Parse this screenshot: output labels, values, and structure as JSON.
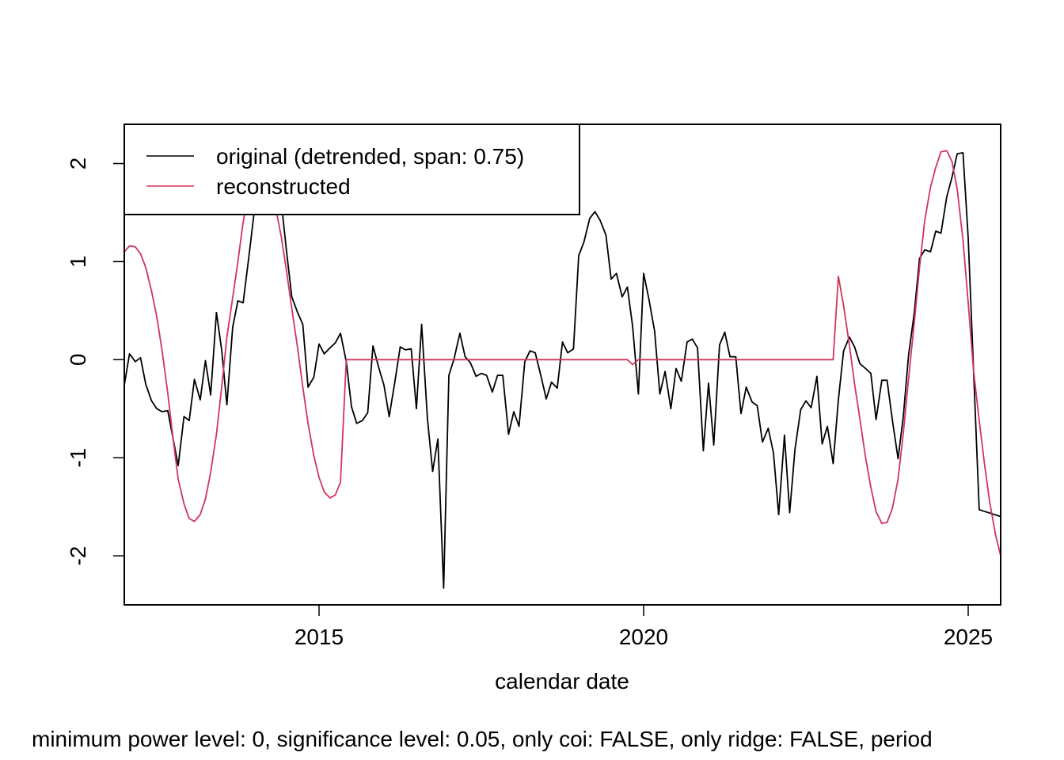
{
  "chart_data": {
    "type": "line",
    "xlabel": "calendar date",
    "ylabel": "",
    "xlim": [
      2012.0,
      2025.5
    ],
    "ylim": [
      -2.5,
      2.4
    ],
    "x_ticks": [
      2015,
      2020,
      2025
    ],
    "y_ticks": [
      -2,
      -1,
      0,
      1,
      2
    ],
    "legend_position": "top-left",
    "footnote": "minimum power level: 0, significance level: 0.05, only coi: FALSE, only ridge: FALSE, period",
    "series": [
      {
        "name": "original (detrended, span: 0.75)",
        "color": "#000000",
        "points": [
          [
            2012.0,
            -0.26
          ],
          [
            2012.08,
            0.06
          ],
          [
            2012.17,
            -0.02
          ],
          [
            2012.25,
            0.02
          ],
          [
            2012.33,
            -0.25
          ],
          [
            2012.42,
            -0.42
          ],
          [
            2012.5,
            -0.5
          ],
          [
            2012.58,
            -0.53
          ],
          [
            2012.67,
            -0.52
          ],
          [
            2012.75,
            -0.8
          ],
          [
            2012.83,
            -1.08
          ],
          [
            2012.92,
            -0.58
          ],
          [
            2013.0,
            -0.62
          ],
          [
            2013.08,
            -0.2
          ],
          [
            2013.17,
            -0.41
          ],
          [
            2013.25,
            -0.01
          ],
          [
            2013.33,
            -0.36
          ],
          [
            2013.42,
            0.48
          ],
          [
            2013.5,
            0.1
          ],
          [
            2013.58,
            -0.46
          ],
          [
            2013.67,
            0.33
          ],
          [
            2013.75,
            0.6
          ],
          [
            2013.83,
            0.58
          ],
          [
            2013.92,
            1.05
          ],
          [
            2014.0,
            1.5
          ],
          [
            2014.08,
            1.8
          ],
          [
            2014.17,
            2.05
          ],
          [
            2014.25,
            2.1
          ],
          [
            2014.33,
            1.95
          ],
          [
            2014.42,
            1.6
          ],
          [
            2014.5,
            1.1
          ],
          [
            2014.58,
            0.64
          ],
          [
            2014.67,
            0.48
          ],
          [
            2014.75,
            0.36
          ],
          [
            2014.83,
            -0.28
          ],
          [
            2014.92,
            -0.18
          ],
          [
            2015.0,
            0.16
          ],
          [
            2015.08,
            0.06
          ],
          [
            2015.17,
            0.12
          ],
          [
            2015.25,
            0.17
          ],
          [
            2015.33,
            0.27
          ],
          [
            2015.42,
            -0.02
          ],
          [
            2015.5,
            -0.48
          ],
          [
            2015.58,
            -0.65
          ],
          [
            2015.67,
            -0.62
          ],
          [
            2015.75,
            -0.54
          ],
          [
            2015.83,
            0.14
          ],
          [
            2015.92,
            -0.08
          ],
          [
            2016.0,
            -0.26
          ],
          [
            2016.08,
            -0.58
          ],
          [
            2016.17,
            -0.22
          ],
          [
            2016.25,
            0.13
          ],
          [
            2016.33,
            0.1
          ],
          [
            2016.42,
            0.11
          ],
          [
            2016.5,
            -0.5
          ],
          [
            2016.58,
            0.36
          ],
          [
            2016.67,
            -0.6
          ],
          [
            2016.75,
            -1.14
          ],
          [
            2016.83,
            -0.81
          ],
          [
            2016.92,
            -2.33
          ],
          [
            2017.0,
            -0.16
          ],
          [
            2017.08,
            0.01
          ],
          [
            2017.17,
            0.27
          ],
          [
            2017.25,
            0.03
          ],
          [
            2017.33,
            -0.03
          ],
          [
            2017.42,
            -0.17
          ],
          [
            2017.5,
            -0.14
          ],
          [
            2017.58,
            -0.16
          ],
          [
            2017.67,
            -0.33
          ],
          [
            2017.75,
            -0.16
          ],
          [
            2017.83,
            -0.16
          ],
          [
            2017.92,
            -0.76
          ],
          [
            2018.0,
            -0.53
          ],
          [
            2018.08,
            -0.68
          ],
          [
            2018.17,
            -0.02
          ],
          [
            2018.25,
            0.09
          ],
          [
            2018.33,
            0.07
          ],
          [
            2018.42,
            -0.17
          ],
          [
            2018.5,
            -0.4
          ],
          [
            2018.58,
            -0.23
          ],
          [
            2018.67,
            -0.29
          ],
          [
            2018.75,
            0.18
          ],
          [
            2018.83,
            0.07
          ],
          [
            2018.92,
            0.11
          ],
          [
            2019.0,
            1.06
          ],
          [
            2019.08,
            1.2
          ],
          [
            2019.17,
            1.44
          ],
          [
            2019.25,
            1.51
          ],
          [
            2019.33,
            1.42
          ],
          [
            2019.42,
            1.27
          ],
          [
            2019.5,
            0.82
          ],
          [
            2019.58,
            0.88
          ],
          [
            2019.67,
            0.64
          ],
          [
            2019.75,
            0.74
          ],
          [
            2019.83,
            0.34
          ],
          [
            2019.92,
            -0.35
          ],
          [
            2020.0,
            0.88
          ],
          [
            2020.08,
            0.62
          ],
          [
            2020.17,
            0.29
          ],
          [
            2020.25,
            -0.35
          ],
          [
            2020.33,
            -0.12
          ],
          [
            2020.42,
            -0.5
          ],
          [
            2020.5,
            -0.09
          ],
          [
            2020.58,
            -0.22
          ],
          [
            2020.67,
            0.18
          ],
          [
            2020.75,
            0.21
          ],
          [
            2020.83,
            0.12
          ],
          [
            2020.92,
            -0.93
          ],
          [
            2021.0,
            -0.24
          ],
          [
            2021.08,
            -0.87
          ],
          [
            2021.17,
            0.15
          ],
          [
            2021.25,
            0.28
          ],
          [
            2021.33,
            0.03
          ],
          [
            2021.42,
            0.03
          ],
          [
            2021.5,
            -0.55
          ],
          [
            2021.58,
            -0.28
          ],
          [
            2021.67,
            -0.43
          ],
          [
            2021.75,
            -0.47
          ],
          [
            2021.83,
            -0.84
          ],
          [
            2021.92,
            -0.7
          ],
          [
            2022.0,
            -0.95
          ],
          [
            2022.08,
            -1.58
          ],
          [
            2022.17,
            -0.77
          ],
          [
            2022.25,
            -1.56
          ],
          [
            2022.33,
            -0.92
          ],
          [
            2022.42,
            -0.51
          ],
          [
            2022.5,
            -0.42
          ],
          [
            2022.58,
            -0.49
          ],
          [
            2022.67,
            -0.17
          ],
          [
            2022.75,
            -0.86
          ],
          [
            2022.83,
            -0.68
          ],
          [
            2022.92,
            -1.06
          ],
          [
            2023.0,
            -0.41
          ],
          [
            2023.08,
            0.09
          ],
          [
            2023.17,
            0.23
          ],
          [
            2023.25,
            0.13
          ],
          [
            2023.33,
            -0.04
          ],
          [
            2023.42,
            -0.09
          ],
          [
            2023.5,
            -0.14
          ],
          [
            2023.58,
            -0.61
          ],
          [
            2023.67,
            -0.21
          ],
          [
            2023.75,
            -0.21
          ],
          [
            2023.83,
            -0.61
          ],
          [
            2023.92,
            -1.01
          ],
          [
            2024.0,
            -0.58
          ],
          [
            2024.08,
            0.04
          ],
          [
            2024.17,
            0.48
          ],
          [
            2024.25,
            1.03
          ],
          [
            2024.33,
            1.12
          ],
          [
            2024.42,
            1.1
          ],
          [
            2024.5,
            1.31
          ],
          [
            2024.58,
            1.29
          ],
          [
            2024.67,
            1.66
          ],
          [
            2024.75,
            1.86
          ],
          [
            2024.83,
            2.1
          ],
          [
            2024.92,
            2.11
          ],
          [
            2025.0,
            1.24
          ],
          [
            2025.17,
            -1.53
          ],
          [
            2025.5,
            -1.6
          ]
        ]
      },
      {
        "name": "reconstructed",
        "color": "#D0355A",
        "points": [
          [
            2012.0,
            1.1
          ],
          [
            2012.08,
            1.16
          ],
          [
            2012.17,
            1.15
          ],
          [
            2012.25,
            1.08
          ],
          [
            2012.33,
            0.94
          ],
          [
            2012.42,
            0.7
          ],
          [
            2012.5,
            0.44
          ],
          [
            2012.58,
            0.1
          ],
          [
            2012.67,
            -0.34
          ],
          [
            2012.75,
            -0.8
          ],
          [
            2012.83,
            -1.22
          ],
          [
            2012.92,
            -1.47
          ],
          [
            2013.0,
            -1.62
          ],
          [
            2013.08,
            -1.65
          ],
          [
            2013.17,
            -1.58
          ],
          [
            2013.25,
            -1.42
          ],
          [
            2013.33,
            -1.15
          ],
          [
            2013.42,
            -0.76
          ],
          [
            2013.5,
            -0.28
          ],
          [
            2013.58,
            0.23
          ],
          [
            2013.67,
            0.63
          ],
          [
            2013.75,
            1.0
          ],
          [
            2013.83,
            1.4
          ],
          [
            2013.92,
            1.72
          ],
          [
            2014.0,
            1.9
          ],
          [
            2014.08,
            2.0
          ],
          [
            2014.17,
            2.0
          ],
          [
            2014.25,
            1.82
          ],
          [
            2014.33,
            1.55
          ],
          [
            2014.42,
            1.25
          ],
          [
            2014.5,
            0.9
          ],
          [
            2014.58,
            0.52
          ],
          [
            2014.67,
            0.12
          ],
          [
            2014.75,
            -0.28
          ],
          [
            2014.83,
            -0.65
          ],
          [
            2014.92,
            -0.98
          ],
          [
            2015.0,
            -1.2
          ],
          [
            2015.08,
            -1.35
          ],
          [
            2015.17,
            -1.41
          ],
          [
            2015.25,
            -1.38
          ],
          [
            2015.33,
            -1.25
          ],
          [
            2015.42,
            0.0
          ],
          [
            2015.5,
            0.0
          ],
          [
            2016.0,
            0.0
          ],
          [
            2017.0,
            0.0
          ],
          [
            2018.0,
            0.0
          ],
          [
            2019.0,
            0.0
          ],
          [
            2019.67,
            0.0
          ],
          [
            2019.75,
            0.0
          ],
          [
            2019.83,
            -0.05
          ],
          [
            2019.92,
            0.0
          ],
          [
            2020.5,
            0.0
          ],
          [
            2021.0,
            0.0
          ],
          [
            2022.0,
            0.0
          ],
          [
            2022.92,
            0.0
          ],
          [
            2023.0,
            0.85
          ],
          [
            2023.08,
            0.55
          ],
          [
            2023.17,
            0.15
          ],
          [
            2023.25,
            -0.25
          ],
          [
            2023.33,
            -0.6
          ],
          [
            2023.42,
            -1.0
          ],
          [
            2023.5,
            -1.3
          ],
          [
            2023.58,
            -1.55
          ],
          [
            2023.67,
            -1.67
          ],
          [
            2023.75,
            -1.66
          ],
          [
            2023.83,
            -1.52
          ],
          [
            2023.92,
            -1.22
          ],
          [
            2024.0,
            -0.75
          ],
          [
            2024.08,
            -0.2
          ],
          [
            2024.17,
            0.38
          ],
          [
            2024.25,
            0.94
          ],
          [
            2024.33,
            1.42
          ],
          [
            2024.42,
            1.76
          ],
          [
            2024.5,
            1.96
          ],
          [
            2024.58,
            2.12
          ],
          [
            2024.67,
            2.13
          ],
          [
            2024.75,
            2.02
          ],
          [
            2024.83,
            1.74
          ],
          [
            2024.92,
            1.22
          ],
          [
            2025.0,
            0.58
          ],
          [
            2025.08,
            -0.1
          ],
          [
            2025.17,
            -0.62
          ],
          [
            2025.25,
            -1.06
          ],
          [
            2025.33,
            -1.45
          ],
          [
            2025.42,
            -1.78
          ],
          [
            2025.5,
            -2.0
          ]
        ]
      }
    ]
  }
}
